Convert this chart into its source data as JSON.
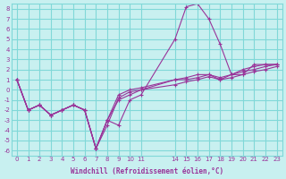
{
  "xlabel": "Windchill (Refroidissement éolien,°C)",
  "bg_color": "#c8f0f0",
  "grid_color": "#80d8d8",
  "line_color": "#993399",
  "xlim": [
    -0.5,
    23.5
  ],
  "ylim": [
    -6.5,
    8.5
  ],
  "xticks": [
    0,
    1,
    2,
    3,
    4,
    5,
    6,
    7,
    8,
    9,
    10,
    11,
    14,
    15,
    16,
    17,
    18,
    19,
    20,
    21,
    22,
    23
  ],
  "yticks": [
    8,
    7,
    6,
    5,
    4,
    3,
    2,
    1,
    0,
    -1,
    -2,
    -3,
    -4,
    -5,
    -6
  ],
  "series": [
    [
      0,
      1,
      2,
      3,
      4,
      5,
      6,
      7,
      8,
      9,
      10,
      11,
      14,
      15,
      16,
      17,
      18,
      19,
      20,
      21,
      22,
      23
    ],
    [
      1,
      -2,
      -1.5,
      -2.5,
      -2,
      -1.5,
      -2,
      -5.8,
      -3,
      -3.5,
      -1,
      -0.5,
      5,
      8.2,
      8.5,
      7,
      4.5,
      1.5,
      1.5,
      2.5,
      2.5,
      2.5
    ],
    [
      1,
      -2,
      -1.5,
      -2.5,
      -2,
      -1.5,
      -2,
      -5.8,
      -3,
      -1,
      -0.5,
      0,
      1,
      1.2,
      1.5,
      1.5,
      1.2,
      1.5,
      2,
      2.3,
      2.5,
      2.5
    ],
    [
      1,
      -2,
      -1.5,
      -2.5,
      -2,
      -1.5,
      -2,
      -5.8,
      -3,
      -0.5,
      0,
      0.2,
      1,
      1,
      1.2,
      1.5,
      1.0,
      1.5,
      1.8,
      2.0,
      2.3,
      2.5
    ],
    [
      1,
      -2,
      -1.5,
      -2.5,
      -2,
      -1.5,
      -2,
      -5.8,
      -3.5,
      -0.8,
      -0.2,
      0,
      0.5,
      0.8,
      1.0,
      1.3,
      1.0,
      1.2,
      1.5,
      1.8,
      2.0,
      2.3
    ]
  ]
}
